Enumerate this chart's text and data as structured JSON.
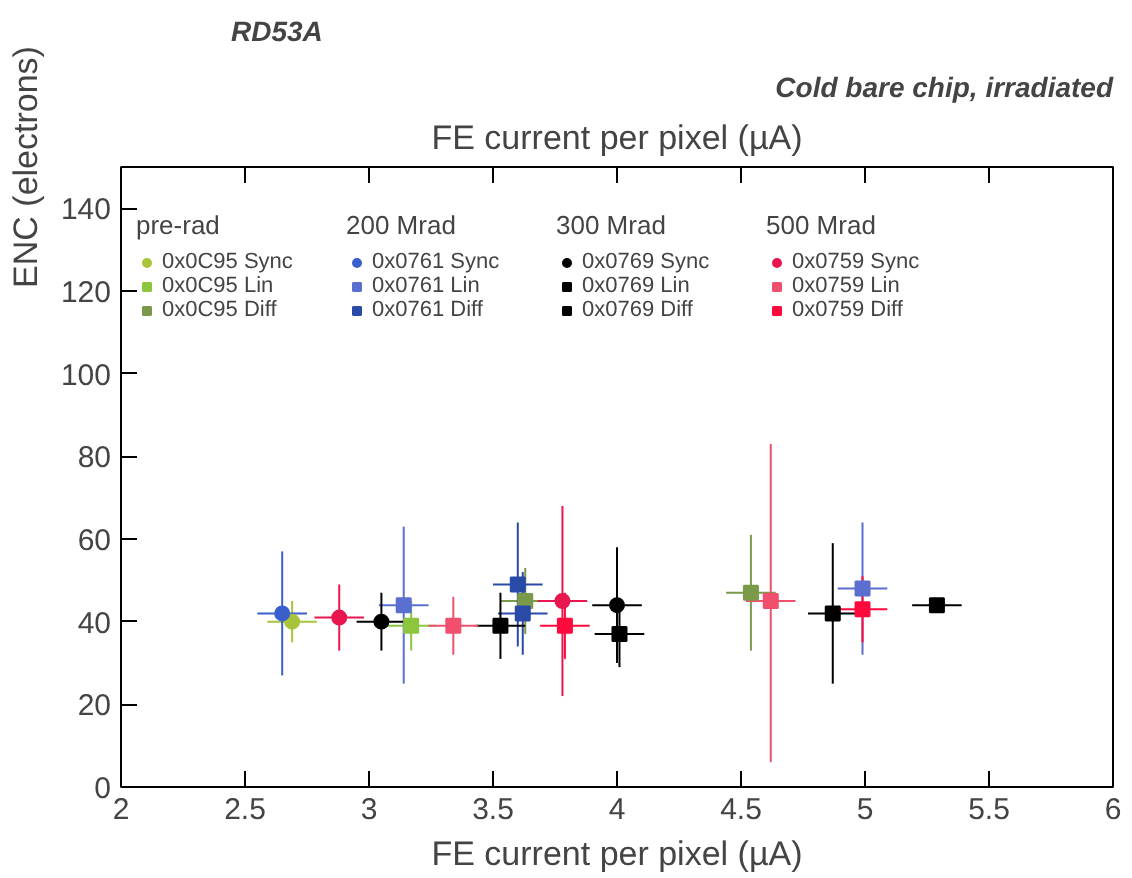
{
  "chart_data": {
    "type": "scatter",
    "title": "RD53A",
    "subtitle": "Cold bare chip, irradiated",
    "xlabel": "FE current per pixel (µA)",
    "x2label": "FE current per pixel (µA)",
    "ylabel": "ENC (electrons)",
    "annotations": [
      "pre-rad",
      "200 Mrad",
      "300 Mrad",
      "500 Mrad"
    ],
    "xlim": [
      2,
      6
    ],
    "xticks": [
      2,
      2.5,
      3,
      3.5,
      4,
      4.5,
      5,
      5.5,
      6
    ],
    "ylim": [
      0,
      150
    ],
    "yticks": [
      0,
      20,
      40,
      60,
      80,
      100,
      120,
      140
    ],
    "grid": false,
    "legend": "top",
    "series": [
      {
        "name": "0x0C95 Sync",
        "color": "#a8c43a",
        "marker": "circle",
        "x": [
          2.69
        ],
        "values": [
          40
        ],
        "errors": [
          5
        ],
        "xerrors": [
          0.1
        ]
      },
      {
        "name": "0x0C95 Lin",
        "color": "#8cc63f",
        "marker": "square",
        "x": [
          3.17
        ],
        "values": [
          39
        ],
        "errors": [
          6
        ],
        "xerrors": [
          0.1
        ]
      },
      {
        "name": "0x0C95 Diff",
        "color": "#7a9a4a",
        "marker": "square",
        "x": [
          3.63,
          4.54
        ],
        "values": [
          45,
          47
        ],
        "errors": [
          8,
          14
        ],
        "xerrors": [
          0.1,
          0.1
        ]
      },
      {
        "name": "0x0761 Sync",
        "color": "#3a5fcd",
        "marker": "circle",
        "x": [
          2.65
        ],
        "values": [
          42
        ],
        "errors": [
          15
        ],
        "xerrors": [
          0.1
        ]
      },
      {
        "name": "0x0761 Lin",
        "color": "#5b6fd0",
        "marker": "square",
        "x": [
          3.14,
          4.99
        ],
        "values": [
          44,
          48
        ],
        "errors": [
          19,
          16
        ],
        "xerrors": [
          0.1,
          0.1
        ]
      },
      {
        "name": "0x0761 Diff",
        "color": "#2a4aa8",
        "marker": "square",
        "x": [
          3.6,
          3.62
        ],
        "values": [
          49,
          42
        ],
        "errors": [
          15,
          10
        ],
        "xerrors": [
          0.1,
          0.1
        ]
      },
      {
        "name": "0x0769 Sync",
        "color": "#000000",
        "marker": "circle",
        "x": [
          3.05,
          4.0
        ],
        "values": [
          40,
          44
        ],
        "errors": [
          7,
          14
        ],
        "xerrors": [
          0.1,
          0.1
        ]
      },
      {
        "name": "0x0769 Lin",
        "color": "#000000",
        "marker": "square",
        "x": [
          3.53,
          4.87
        ],
        "values": [
          39,
          42
        ],
        "errors": [
          8,
          17
        ],
        "xerrors": [
          0.1,
          0.1
        ]
      },
      {
        "name": "0x0769 Diff",
        "color": "#000000",
        "marker": "square",
        "x": [
          4.01,
          5.29
        ],
        "values": [
          37,
          44
        ],
        "errors": [
          8,
          1
        ],
        "xerrors": [
          0.1,
          0.1
        ]
      },
      {
        "name": "0x0759 Sync",
        "color": "#e8174f",
        "marker": "circle",
        "x": [
          2.88,
          3.78
        ],
        "values": [
          41,
          45
        ],
        "errors": [
          8,
          [
            22,
            68
          ]
        ],
        "xerrors": [
          0.1,
          0.1
        ]
      },
      {
        "name": "0x0759 Lin",
        "color": "#f0506e",
        "marker": "square",
        "x": [
          3.34,
          4.62
        ],
        "values": [
          39,
          45
        ],
        "errors": [
          7,
          [
            6,
            83
          ]
        ],
        "xerrors": [
          0.1,
          0.1
        ]
      },
      {
        "name": "0x0759 Diff",
        "color": "#ff0a3c",
        "marker": "square",
        "x": [
          3.79,
          4.99
        ],
        "values": [
          39,
          43
        ],
        "errors": [
          8,
          8
        ],
        "xerrors": [
          0.1,
          0.1
        ]
      }
    ]
  }
}
